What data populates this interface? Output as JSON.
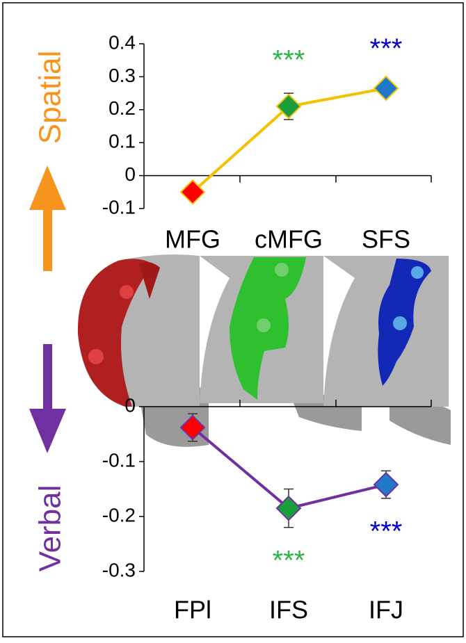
{
  "chart_data": [
    {
      "type": "line",
      "ylabel": "Spatial",
      "ylabel_color": "#f7941d",
      "categories": [
        "MFG",
        "cMFG",
        "SFS"
      ],
      "values": [
        -0.05,
        0.21,
        0.265
      ],
      "errors": [
        0.01,
        0.04,
        0.02
      ],
      "line_color": "#f5c000",
      "marker_colors": [
        "#ff0000",
        "#1a9e3a",
        "#1f78c8"
      ],
      "annotations": [
        null,
        "***",
        "***"
      ],
      "annotation_colors": [
        null,
        "#2eb34a",
        "#0000cc"
      ],
      "ylim": [
        -0.1,
        0.4
      ],
      "yticks": [
        -0.1,
        0,
        0.1,
        0.2,
        0.3,
        0.4
      ]
    },
    {
      "type": "line",
      "ylabel": "Verbal",
      "ylabel_color": "#7030a0",
      "categories": [
        "FPl",
        "IFS",
        "IFJ"
      ],
      "values": [
        -0.038,
        -0.185,
        -0.142
      ],
      "errors": [
        0.025,
        0.035,
        0.025
      ],
      "line_color": "#7030a0",
      "marker_colors": [
        "#ff0000",
        "#1a9e3a",
        "#1f78c8"
      ],
      "annotations": [
        null,
        "***",
        "***"
      ],
      "annotation_colors": [
        null,
        "#2eb34a",
        "#0000cc"
      ],
      "ylim": [
        -0.3,
        0
      ],
      "yticks": [
        -0.3,
        -0.2,
        -0.1,
        0
      ]
    }
  ]
}
